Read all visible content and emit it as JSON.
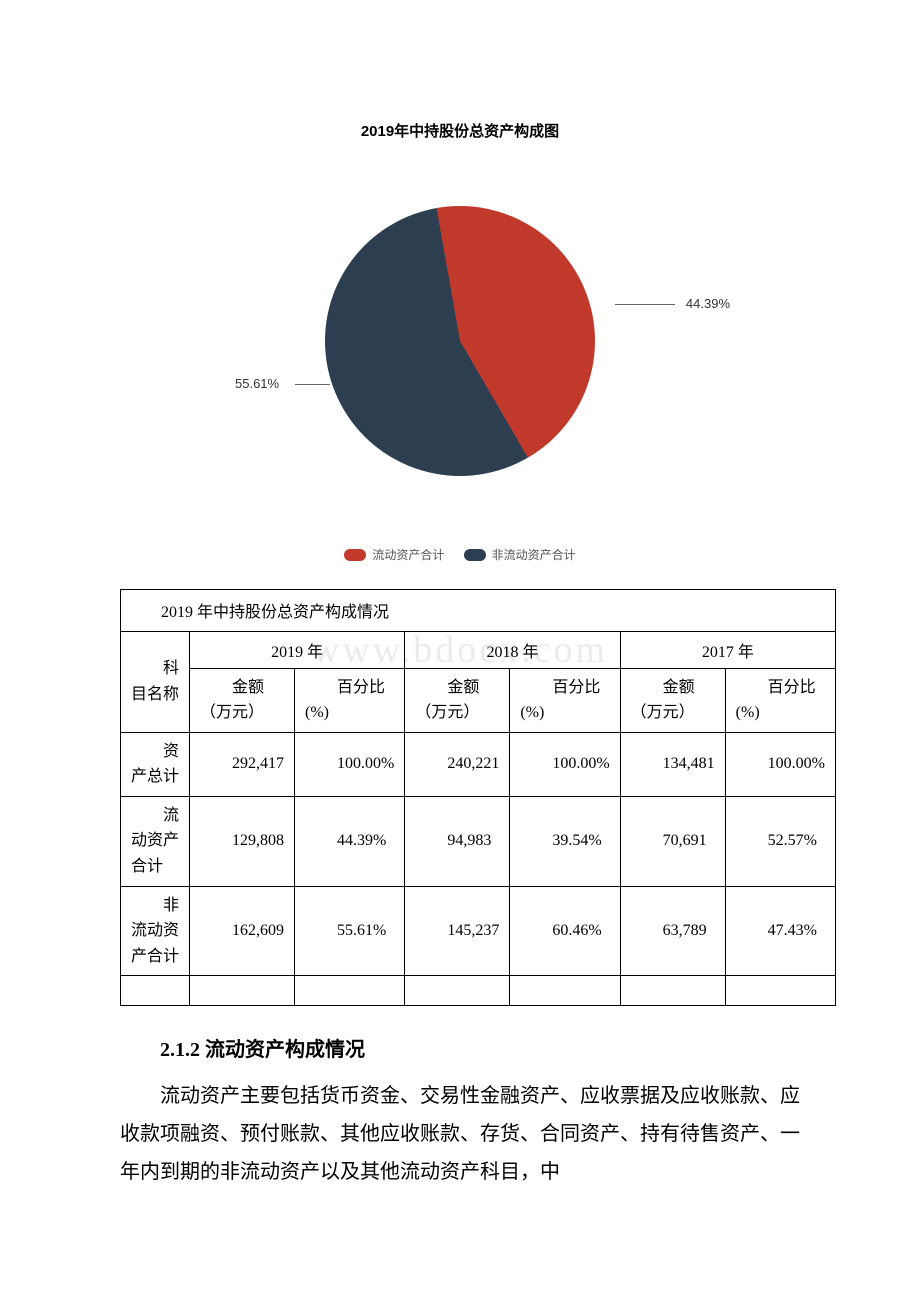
{
  "chart": {
    "type": "pie",
    "title": "2019年中持股份总资产构成图",
    "title_fontsize": 15,
    "slices": [
      {
        "label": "流动资产合计",
        "value": 44.39,
        "display": "44.39%",
        "color": "#c0392b"
      },
      {
        "label": "非流动资产合计",
        "value": 55.61,
        "display": "55.61%",
        "color": "#2c3e50"
      }
    ],
    "legend_colors": {
      "current": "#c0392b",
      "noncurrent": "#2c3e50"
    },
    "legend_labels": {
      "current": "流动资产合计",
      "noncurrent": "非流动资产合计"
    },
    "background_color": "#ffffff",
    "leader_color": "#666666"
  },
  "watermark": "www.bdocx.com",
  "table": {
    "title": "2019 年中持股份总资产构成情况",
    "col_group_headers": [
      "2019 年",
      "2018 年",
      "2017 年"
    ],
    "row_header_label": "科目名称",
    "sub_headers": {
      "amount": "金额（万元）",
      "percent": "百分比(%)"
    },
    "rows": [
      {
        "name": "资产总计",
        "y2019_amt": "292,417",
        "y2019_pct": "100.00%",
        "y2018_amt": "240,221",
        "y2018_pct": "100.00%",
        "y2017_amt": "134,481",
        "y2017_pct": "100.00%"
      },
      {
        "name": "流动资产合计",
        "y2019_amt": "129,808",
        "y2019_pct": "44.39%",
        "y2018_amt": "94,983",
        "y2018_pct": "39.54%",
        "y2017_amt": "70,691",
        "y2017_pct": "52.57%"
      },
      {
        "name": "非流动资产合计",
        "y2019_amt": "162,609",
        "y2019_pct": "55.61%",
        "y2018_amt": "145,237",
        "y2018_pct": "60.46%",
        "y2017_amt": "63,789",
        "y2017_pct": "47.43%"
      }
    ]
  },
  "section": {
    "number_title": "2.1.2 流动资产构成情况",
    "paragraph": "流动资产主要包括货币资金、交易性金融资产、应收票据及应收账款、应收款项融资、预付账款、其他应收账款、存货、合同资产、持有待售资产、一年内到期的非流动资产以及其他流动资产科目，中"
  }
}
